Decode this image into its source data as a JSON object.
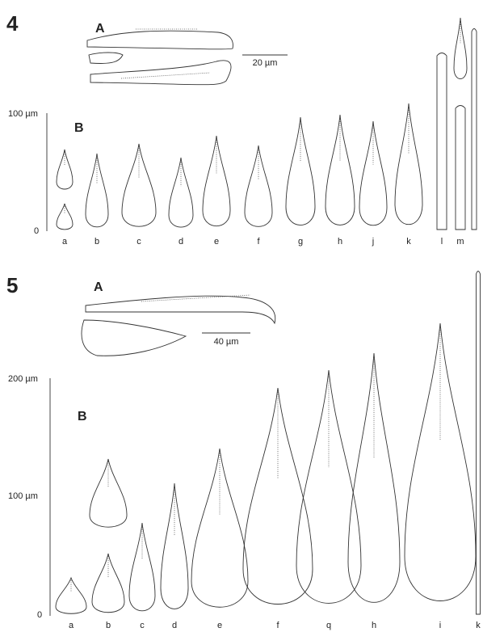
{
  "figure_4": {
    "number": "4",
    "panel_a": {
      "label": "A",
      "scale_bar": "20 µm"
    },
    "panel_b": {
      "label": "B",
      "axis_labels": [
        "100 µm",
        "0"
      ],
      "specimens": [
        "a",
        "b",
        "c",
        "d",
        "e",
        "f",
        "g",
        "h",
        "j",
        "k",
        "l",
        "m"
      ]
    }
  },
  "figure_5": {
    "number": "5",
    "panel_a": {
      "label": "A",
      "scale_bar": "40 µm"
    },
    "panel_b": {
      "label": "B",
      "axis_labels": [
        "200 µm",
        "100 µm",
        "0"
      ],
      "specimens": [
        "a",
        "b",
        "c",
        "d",
        "e",
        "f",
        "q",
        "h",
        "i",
        "k"
      ]
    }
  }
}
